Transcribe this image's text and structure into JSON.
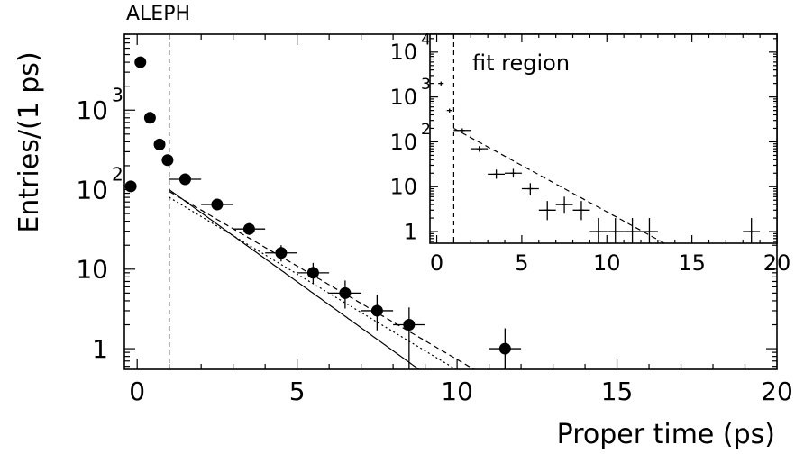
{
  "chart_data": [
    {
      "type": "scatter",
      "title": "ALEPH",
      "xlabel": "Proper time (ps)",
      "ylabel": "Entries/(1 ps)",
      "xlim": [
        -0.4,
        20
      ],
      "ylim": [
        0.55,
        9000
      ],
      "yscale": "log",
      "x_ticks": [
        "0",
        "5",
        "10",
        "15",
        "20"
      ],
      "y_ticks": [
        {
          "base": "1",
          "exp": ""
        },
        {
          "base": "10",
          "exp": ""
        },
        {
          "base": "10",
          "exp": "2"
        },
        {
          "base": "10",
          "exp": "3"
        }
      ],
      "fit_start": 1.0,
      "series": [
        {
          "marker": "filled-circle",
          "points": [
            {
              "x": -0.2,
              "y": 110,
              "ylo": 110,
              "yhi": 110
            },
            {
              "x": 0.1,
              "y": 4000,
              "ylo": 4000,
              "yhi": 4000
            },
            {
              "x": 0.4,
              "y": 800,
              "ylo": 800,
              "yhi": 800
            },
            {
              "x": 0.7,
              "y": 370,
              "ylo": 370,
              "yhi": 370
            },
            {
              "x": 0.95,
              "y": 235,
              "ylo": 235,
              "yhi": 235
            },
            {
              "x": 1.5,
              "y": 135,
              "ylo": 122,
              "yhi": 148
            },
            {
              "x": 2.5,
              "y": 65,
              "ylo": 57,
              "yhi": 73
            },
            {
              "x": 3.5,
              "y": 32,
              "ylo": 27,
              "yhi": 38
            },
            {
              "x": 4.5,
              "y": 16,
              "ylo": 12.5,
              "yhi": 20
            },
            {
              "x": 5.5,
              "y": 9,
              "ylo": 6.5,
              "yhi": 12
            },
            {
              "x": 6.5,
              "y": 5,
              "ylo": 3.2,
              "yhi": 7.2
            },
            {
              "x": 7.5,
              "y": 3,
              "ylo": 1.7,
              "yhi": 4.8
            },
            {
              "x": 8.5,
              "y": 2,
              "ylo": 0.55,
              "yhi": 3.3
            },
            {
              "x": 11.5,
              "y": 1,
              "ylo": 0.55,
              "yhi": 1.8
            }
          ]
        }
      ],
      "curves": [
        {
          "style": "solid",
          "A": 100,
          "tau": 1.5
        },
        {
          "style": "dashed",
          "A": 95,
          "tau": 1.85
        },
        {
          "style": "dotted",
          "A": 80,
          "tau": 1.8
        }
      ]
    },
    {
      "type": "scatter",
      "inset": true,
      "annotation": "fit region",
      "xlim": [
        -0.4,
        20
      ],
      "ylim": [
        0.55,
        25000
      ],
      "yscale": "log",
      "x_ticks": [
        "0",
        "5",
        "10",
        "15",
        "20"
      ],
      "y_ticks": [
        {
          "base": "1",
          "exp": ""
        },
        {
          "base": "10",
          "exp": ""
        },
        {
          "base": "10",
          "exp": "2"
        },
        {
          "base": "10",
          "exp": "3"
        },
        {
          "base": "10",
          "exp": "4"
        }
      ],
      "fit_start": 1.0,
      "series": [
        {
          "marker": "cross",
          "points": [
            {
              "x": 0.25,
              "y": 2000,
              "ylo": 1800,
              "yhi": 2200
            },
            {
              "x": 0.75,
              "y": 500,
              "ylo": 450,
              "yhi": 550
            },
            {
              "x": 1.5,
              "y": 180,
              "ylo": 160,
              "yhi": 200
            },
            {
              "x": 2.5,
              "y": 70,
              "ylo": 60,
              "yhi": 80
            },
            {
              "x": 3.5,
              "y": 19,
              "ylo": 15,
              "yhi": 24
            },
            {
              "x": 4.5,
              "y": 20,
              "ylo": 16,
              "yhi": 25
            },
            {
              "x": 5.5,
              "y": 9,
              "ylo": 6.5,
              "yhi": 12
            },
            {
              "x": 6.5,
              "y": 3,
              "ylo": 1.8,
              "yhi": 4.8
            },
            {
              "x": 7.5,
              "y": 4,
              "ylo": 2.5,
              "yhi": 6
            },
            {
              "x": 8.5,
              "y": 3,
              "ylo": 1.8,
              "yhi": 4.8
            },
            {
              "x": 9.5,
              "y": 1,
              "ylo": 0.55,
              "yhi": 2
            },
            {
              "x": 10.5,
              "y": 1,
              "ylo": 0.55,
              "yhi": 2
            },
            {
              "x": 11.5,
              "y": 1,
              "ylo": 0.55,
              "yhi": 2
            },
            {
              "x": 12.5,
              "y": 1,
              "ylo": 0.55,
              "yhi": 2
            },
            {
              "x": 18.5,
              "y": 1,
              "ylo": 0.55,
              "yhi": 2
            }
          ]
        }
      ],
      "curves": [
        {
          "style": "dashed",
          "A": 200,
          "tau": 2.1
        }
      ]
    }
  ]
}
